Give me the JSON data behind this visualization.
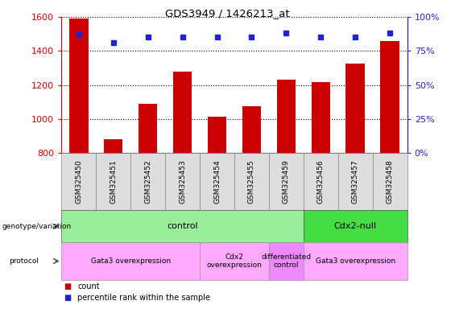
{
  "title": "GDS3949 / 1426213_at",
  "samples": [
    "GSM325450",
    "GSM325451",
    "GSM325452",
    "GSM325453",
    "GSM325454",
    "GSM325455",
    "GSM325459",
    "GSM325456",
    "GSM325457",
    "GSM325458"
  ],
  "count_values": [
    1590,
    880,
    1090,
    1280,
    1015,
    1075,
    1230,
    1215,
    1325,
    1460
  ],
  "percentile_values": [
    87,
    81,
    85,
    85,
    85,
    85,
    88,
    85,
    85,
    88
  ],
  "ylim_left": [
    800,
    1600
  ],
  "ylim_right": [
    0,
    100
  ],
  "bar_color": "#cc0000",
  "dot_color": "#2222cc",
  "left_tick_color": "#cc0000",
  "right_tick_color": "#2222cc",
  "genotype_groups": [
    {
      "label": "control",
      "start": 0,
      "end": 7,
      "color": "#99ee99"
    },
    {
      "label": "Cdx2-null",
      "start": 7,
      "end": 10,
      "color": "#44dd44"
    }
  ],
  "protocol_groups": [
    {
      "label": "Gata3 overexpression",
      "start": 0,
      "end": 4,
      "color": "#ffaaff"
    },
    {
      "label": "Cdx2\noverexpression",
      "start": 4,
      "end": 6,
      "color": "#ffaaff"
    },
    {
      "label": "differentiated\ncontrol",
      "start": 6,
      "end": 7,
      "color": "#ee88ff"
    },
    {
      "label": "Gata3 overexpression",
      "start": 7,
      "end": 10,
      "color": "#ffaaff"
    }
  ],
  "legend_count_color": "#cc0000",
  "legend_dot_color": "#2222cc",
  "left_yticks": [
    800,
    1000,
    1200,
    1400,
    1600
  ],
  "right_yticks": [
    0,
    25,
    50,
    75,
    100
  ]
}
